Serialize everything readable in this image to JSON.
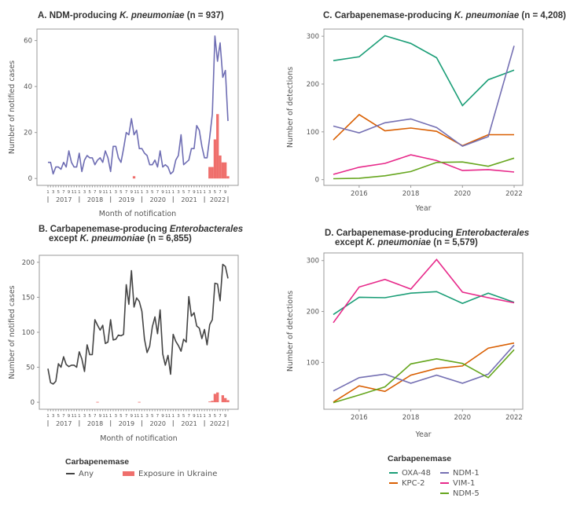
{
  "chart_data": [
    {
      "id": "A",
      "type": "line+bar",
      "title_parts": [
        {
          "text": "A. NDM-producing ",
          "italic": false
        },
        {
          "text": "K. pneumoniae",
          "italic": true
        },
        {
          "text": " (n = 937)",
          "italic": false
        }
      ],
      "xlabel": "Month of notification",
      "ylabel": "Number of notified cases",
      "ylim": [
        -3,
        65
      ],
      "yticks": [
        0,
        20,
        40,
        60
      ],
      "years": [
        "2017",
        "2018",
        "2019",
        "2020",
        "2021",
        "2022"
      ],
      "month_tick_labels": [
        "1",
        "3",
        "5",
        "7",
        "9",
        "11"
      ],
      "start": "2017-01",
      "series": [
        {
          "name": "Any",
          "type": "line",
          "color": "#6e6db3",
          "values": [
            7,
            7,
            2,
            5,
            5,
            4,
            7,
            5,
            12,
            7,
            5,
            5,
            11,
            3,
            8,
            10,
            9,
            9,
            6,
            8,
            9,
            7,
            12,
            9,
            3,
            14,
            14,
            9,
            7,
            13,
            20,
            19,
            26,
            19,
            21,
            13,
            13,
            11,
            10,
            6,
            6,
            8,
            5,
            12,
            5,
            6,
            5,
            2,
            3,
            8,
            10,
            19,
            6,
            7,
            8,
            13,
            13,
            23,
            21,
            14,
            9,
            9,
            18,
            28,
            62,
            51,
            59,
            44,
            47,
            25
          ]
        },
        {
          "name": "Exposure in Ukraine",
          "type": "bar",
          "color": "#ef6f6c",
          "points": [
            {
              "month": "2019-10",
              "value": 1
            },
            {
              "month": "2022-03",
              "value": 5
            },
            {
              "month": "2022-04",
              "value": 5
            },
            {
              "month": "2022-05",
              "value": 17
            },
            {
              "month": "2022-06",
              "value": 28
            },
            {
              "month": "2022-07",
              "value": 10
            },
            {
              "month": "2022-08",
              "value": 7
            },
            {
              "month": "2022-09",
              "value": 7
            },
            {
              "month": "2022-10",
              "value": 1
            }
          ]
        }
      ]
    },
    {
      "id": "B",
      "type": "line+bar",
      "title_parts": [
        {
          "text": "B. Carbapenemase-producing ",
          "italic": false
        },
        {
          "text": "Enterobacterales",
          "italic": true
        }
      ],
      "title_parts2": [
        {
          "text": "except ",
          "italic": false
        },
        {
          "text": "K. pneumoniae",
          "italic": true
        },
        {
          "text": " (n = 6,855)",
          "italic": false
        }
      ],
      "xlabel": "Month of notification",
      "ylabel": "Number of notified cases",
      "ylim": [
        -10,
        210
      ],
      "yticks": [
        0,
        50,
        100,
        150,
        200
      ],
      "years": [
        "2017",
        "2018",
        "2019",
        "2020",
        "2021",
        "2022"
      ],
      "month_tick_labels": [
        "1",
        "3",
        "5",
        "7",
        "9",
        "11"
      ],
      "start": "2017-01",
      "series": [
        {
          "name": "Any",
          "type": "line",
          "color": "#444444",
          "values": [
            48,
            28,
            26,
            30,
            55,
            50,
            65,
            54,
            51,
            53,
            53,
            50,
            72,
            62,
            44,
            82,
            68,
            68,
            118,
            110,
            103,
            110,
            84,
            86,
            118,
            89,
            90,
            96,
            95,
            97,
            168,
            140,
            188,
            136,
            149,
            144,
            130,
            90,
            71,
            80,
            108,
            122,
            98,
            132,
            69,
            53,
            67,
            40,
            97,
            87,
            81,
            73,
            90,
            86,
            151,
            123,
            128,
            109,
            106,
            91,
            104,
            82,
            111,
            118,
            170,
            169,
            145,
            197,
            194,
            177
          ]
        },
        {
          "name": "Exposure in Ukraine",
          "type": "bar",
          "color": "#ef6f6c",
          "points": [
            {
              "month": "2018-08",
              "value": 0.5
            },
            {
              "month": "2019-12",
              "value": 0.5
            },
            {
              "month": "2022-03",
              "value": 1
            },
            {
              "month": "2022-04",
              "value": 2
            },
            {
              "month": "2022-05",
              "value": 12
            },
            {
              "month": "2022-06",
              "value": 14
            },
            {
              "month": "2022-08",
              "value": 10
            },
            {
              "month": "2022-09",
              "value": 6
            },
            {
              "month": "2022-10",
              "value": 3
            }
          ]
        }
      ]
    },
    {
      "id": "C",
      "type": "line",
      "title_parts": [
        {
          "text": "C. Carbapenemase-producing ",
          "italic": false
        },
        {
          "text": "K. pneumoniae",
          "italic": true
        },
        {
          "text": " (n = 4,208)",
          "italic": false
        }
      ],
      "xlabel": "Year",
      "ylabel": "Number of detections",
      "x": [
        2015,
        2016,
        2017,
        2018,
        2019,
        2020,
        2021,
        2022
      ],
      "xticks": [
        2016,
        2018,
        2020,
        2022
      ],
      "ylim": [
        -12,
        315
      ],
      "yticks": [
        0,
        100,
        200,
        300
      ],
      "series": [
        {
          "name": "OXA-48",
          "color": "#1b9e77",
          "values": [
            249,
            257,
            301,
            285,
            255,
            155,
            209,
            229
          ]
        },
        {
          "name": "KPC-2",
          "color": "#d95f02",
          "values": [
            83,
            136,
            102,
            108,
            101,
            71,
            94,
            94
          ]
        },
        {
          "name": "NDM-1",
          "color": "#7570b3",
          "values": [
            112,
            98,
            119,
            127,
            109,
            70,
            90,
            280
          ]
        },
        {
          "name": "VIM-1",
          "color": "#e7298a",
          "values": [
            11,
            26,
            34,
            52,
            40,
            19,
            21,
            16
          ]
        },
        {
          "name": "NDM-5",
          "color": "#66a61e",
          "values": [
            2,
            3,
            8,
            17,
            36,
            37,
            28,
            45
          ]
        }
      ]
    },
    {
      "id": "D",
      "type": "line",
      "title_parts": [
        {
          "text": "D. Carbapenemase-producing ",
          "italic": false
        },
        {
          "text": "Enterobacterales",
          "italic": true
        }
      ],
      "title_parts2": [
        {
          "text": "except ",
          "italic": false
        },
        {
          "text": "K. pneumoniae",
          "italic": true
        },
        {
          "text": " (n = 5,579)",
          "italic": false
        }
      ],
      "xlabel": "Year",
      "ylabel": "Number of detections",
      "x": [
        2015,
        2016,
        2017,
        2018,
        2019,
        2020,
        2021,
        2022
      ],
      "xticks": [
        2016,
        2018,
        2020,
        2022
      ],
      "ylim": [
        8,
        315
      ],
      "yticks": [
        100,
        200,
        300
      ],
      "series": [
        {
          "name": "OXA-48",
          "color": "#1b9e77",
          "values": [
            194,
            228,
            227,
            236,
            239,
            216,
            236,
            218
          ]
        },
        {
          "name": "KPC-2",
          "color": "#d95f02",
          "values": [
            22,
            54,
            43,
            75,
            88,
            93,
            128,
            138
          ]
        },
        {
          "name": "NDM-1",
          "color": "#7570b3",
          "values": [
            44,
            70,
            77,
            59,
            75,
            59,
            77,
            134
          ]
        },
        {
          "name": "VIM-1",
          "color": "#e7298a",
          "values": [
            178,
            248,
            263,
            244,
            302,
            238,
            227,
            217
          ]
        },
        {
          "name": "NDM-5",
          "color": "#66a61e",
          "values": [
            21,
            36,
            52,
            97,
            107,
            98,
            70,
            125
          ]
        }
      ]
    }
  ],
  "legend_left": {
    "title": "Carbapenemase",
    "items": [
      {
        "label": "Any",
        "kind": "line",
        "color": "#444444"
      },
      {
        "label": "Exposure in Ukraine",
        "kind": "bar",
        "color": "#ef6f6c"
      }
    ]
  },
  "legend_right": {
    "title": "Carbapenemase",
    "items": [
      {
        "label": "OXA-48",
        "color": "#1b9e77"
      },
      {
        "label": "KPC-2",
        "color": "#d95f02"
      },
      {
        "label": "NDM-1",
        "color": "#7570b3"
      },
      {
        "label": "VIM-1",
        "color": "#e7298a"
      },
      {
        "label": "NDM-5",
        "color": "#66a61e"
      }
    ]
  }
}
